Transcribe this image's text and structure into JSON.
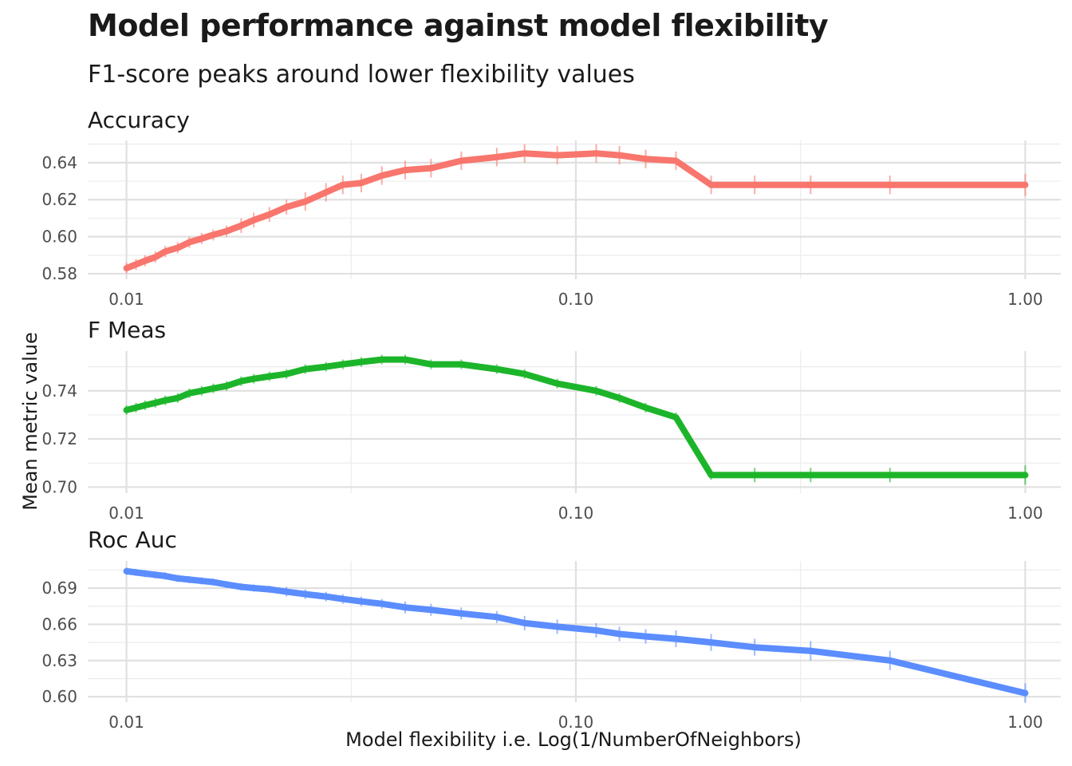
{
  "title": "Model performance against model flexibility",
  "subtitle": "F1-score peaks around lower flexibility values",
  "ylabel": "Mean metric value",
  "xlabel": "Model flexibility i.e. Log(1/NumberOfNeighbors)",
  "chart_data": [
    {
      "type": "line",
      "panel": "Accuracy",
      "color": "#F8766D",
      "x_scale": "log10",
      "xlim": [
        0.0082,
        1.2
      ],
      "x_ticks": [
        0.01,
        0.1,
        1.0
      ],
      "x_tick_labels": [
        "0.01",
        "0.10",
        "1.00"
      ],
      "ylim": [
        0.577,
        0.652
      ],
      "y_ticks": [
        0.58,
        0.6,
        0.62,
        0.64
      ],
      "y_tick_labels": [
        "0.58",
        "0.60",
        "0.62",
        "0.64"
      ],
      "x": [
        0.01,
        0.0105,
        0.011,
        0.0116,
        0.0122,
        0.013,
        0.0138,
        0.0147,
        0.0156,
        0.0167,
        0.018,
        0.0192,
        0.0208,
        0.0227,
        0.025,
        0.0278,
        0.0303,
        0.0333,
        0.037,
        0.0417,
        0.0476,
        0.0556,
        0.0667,
        0.0769,
        0.0909,
        0.111,
        0.125,
        0.143,
        0.167,
        0.2,
        0.25,
        0.333,
        0.5,
        1.0
      ],
      "y": [
        0.583,
        0.585,
        0.587,
        0.589,
        0.592,
        0.594,
        0.597,
        0.599,
        0.601,
        0.603,
        0.606,
        0.609,
        0.612,
        0.616,
        0.619,
        0.624,
        0.628,
        0.629,
        0.633,
        0.636,
        0.637,
        0.641,
        0.643,
        0.645,
        0.644,
        0.645,
        0.644,
        0.642,
        0.641,
        0.628,
        0.628,
        0.628,
        0.628,
        0.628
      ],
      "err": [
        0.003,
        0.003,
        0.003,
        0.003,
        0.003,
        0.003,
        0.003,
        0.003,
        0.003,
        0.003,
        0.004,
        0.004,
        0.004,
        0.004,
        0.005,
        0.005,
        0.005,
        0.005,
        0.005,
        0.005,
        0.005,
        0.005,
        0.005,
        0.005,
        0.005,
        0.005,
        0.005,
        0.005,
        0.005,
        0.005,
        0.005,
        0.005,
        0.005,
        0.006
      ]
    },
    {
      "type": "line",
      "panel": "F Meas",
      "color": "#1CB52A",
      "x_scale": "log10",
      "xlim": [
        0.0082,
        1.2
      ],
      "x_ticks": [
        0.01,
        0.1,
        1.0
      ],
      "x_tick_labels": [
        "0.01",
        "0.10",
        "1.00"
      ],
      "ylim": [
        0.6975,
        0.7565
      ],
      "y_ticks": [
        0.7,
        0.72,
        0.74
      ],
      "y_tick_labels": [
        "0.70",
        "0.72",
        "0.74"
      ],
      "x": [
        0.01,
        0.0105,
        0.011,
        0.0116,
        0.0122,
        0.013,
        0.0138,
        0.0147,
        0.0156,
        0.0167,
        0.018,
        0.0192,
        0.0208,
        0.0227,
        0.025,
        0.0278,
        0.0303,
        0.0333,
        0.037,
        0.0417,
        0.0476,
        0.0556,
        0.0667,
        0.0769,
        0.0909,
        0.111,
        0.125,
        0.143,
        0.167,
        0.2,
        0.25,
        0.333,
        0.5,
        1.0
      ],
      "y": [
        0.732,
        0.733,
        0.734,
        0.735,
        0.736,
        0.737,
        0.739,
        0.74,
        0.741,
        0.742,
        0.744,
        0.745,
        0.746,
        0.747,
        0.749,
        0.75,
        0.751,
        0.752,
        0.753,
        0.753,
        0.751,
        0.751,
        0.749,
        0.747,
        0.743,
        0.74,
        0.737,
        0.733,
        0.729,
        0.705,
        0.705,
        0.705,
        0.705,
        0.705
      ],
      "err": [
        0.002,
        0.002,
        0.002,
        0.002,
        0.002,
        0.002,
        0.002,
        0.002,
        0.002,
        0.002,
        0.002,
        0.002,
        0.002,
        0.002,
        0.002,
        0.002,
        0.002,
        0.002,
        0.002,
        0.002,
        0.002,
        0.002,
        0.002,
        0.002,
        0.002,
        0.002,
        0.002,
        0.002,
        0.002,
        0.002,
        0.003,
        0.003,
        0.003,
        0.004
      ]
    },
    {
      "type": "line",
      "panel": "Roc Auc",
      "color": "#5B8DFF",
      "x_scale": "log10",
      "xlim": [
        0.0082,
        1.2
      ],
      "x_ticks": [
        0.01,
        0.1,
        1.0
      ],
      "x_tick_labels": [
        "0.01",
        "0.10",
        "1.00"
      ],
      "ylim": [
        0.5955,
        0.7125
      ],
      "y_ticks": [
        0.6,
        0.63,
        0.66,
        0.69
      ],
      "y_tick_labels": [
        "0.60",
        "0.63",
        "0.66",
        "0.69"
      ],
      "x": [
        0.01,
        0.0105,
        0.011,
        0.0116,
        0.0122,
        0.013,
        0.0138,
        0.0147,
        0.0156,
        0.0167,
        0.018,
        0.0192,
        0.0208,
        0.0227,
        0.025,
        0.0278,
        0.0303,
        0.0333,
        0.037,
        0.0417,
        0.0476,
        0.0556,
        0.0667,
        0.0769,
        0.0909,
        0.111,
        0.125,
        0.143,
        0.167,
        0.2,
        0.25,
        0.333,
        0.5,
        1.0
      ],
      "y": [
        0.704,
        0.703,
        0.702,
        0.701,
        0.7,
        0.698,
        0.697,
        0.696,
        0.695,
        0.693,
        0.691,
        0.69,
        0.689,
        0.687,
        0.685,
        0.683,
        0.681,
        0.679,
        0.677,
        0.674,
        0.672,
        0.669,
        0.666,
        0.661,
        0.658,
        0.655,
        0.652,
        0.65,
        0.648,
        0.645,
        0.641,
        0.638,
        0.63,
        0.603
      ],
      "err": [
        0.003,
        0.003,
        0.003,
        0.003,
        0.003,
        0.003,
        0.003,
        0.003,
        0.003,
        0.003,
        0.003,
        0.003,
        0.003,
        0.004,
        0.004,
        0.004,
        0.004,
        0.004,
        0.004,
        0.005,
        0.005,
        0.005,
        0.005,
        0.006,
        0.006,
        0.006,
        0.006,
        0.006,
        0.007,
        0.007,
        0.007,
        0.008,
        0.008,
        0.008
      ]
    }
  ]
}
